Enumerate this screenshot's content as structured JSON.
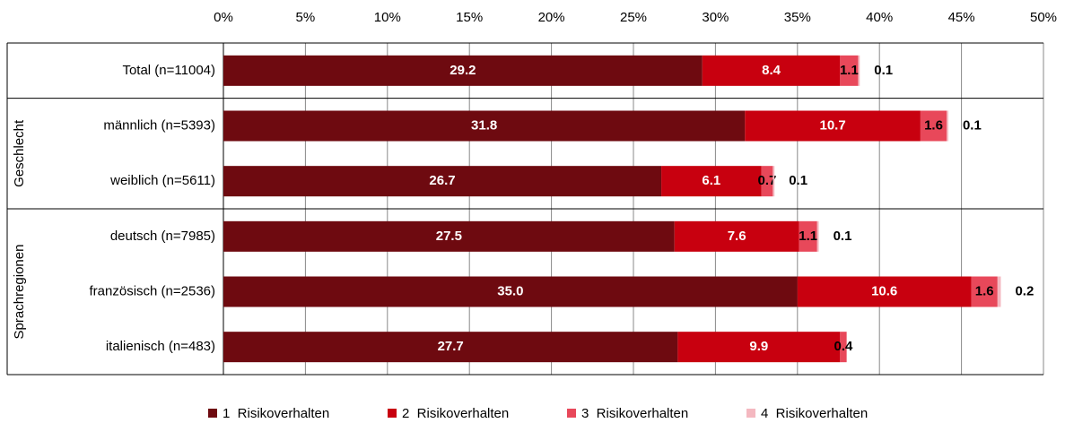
{
  "chart_data": {
    "type": "stacked_barh",
    "categories": [
      "Total (n=11004)",
      "männlich (n=5393)",
      "weiblich (n=5611)",
      "deutsch (n=7985)",
      "französisch (n=2536)",
      "italienisch (n=483)"
    ],
    "group_labels": [
      "Geschlecht",
      "Sprachregionen"
    ],
    "series": [
      {
        "name": "1  Risikoverhalten",
        "color": "#6e0a10",
        "values": [
          29.2,
          31.8,
          26.7,
          27.5,
          35.0,
          27.7
        ],
        "value_labels": [
          "29.2",
          "31.8",
          "26.7",
          "27.5",
          "35.0",
          "27.7"
        ]
      },
      {
        "name": "2  Risikoverhalten",
        "color": "#c8000f",
        "values": [
          8.4,
          10.7,
          6.1,
          7.6,
          10.6,
          9.9
        ],
        "value_labels": [
          "8.4",
          "10.7",
          "6.1",
          "7.6",
          "10.6",
          "9.9"
        ]
      },
      {
        "name": "3  Risikoverhalten",
        "color": "#e8485a",
        "values": [
          1.1,
          1.6,
          0.7,
          1.1,
          1.6,
          0.4
        ],
        "value_labels": [
          "1.1",
          "1.6",
          "0.7",
          "1.1",
          "1.6",
          "0.4"
        ]
      },
      {
        "name": "4  Risikoverhalten",
        "color": "#f4b8c0",
        "values": [
          0.1,
          0.1,
          0.1,
          0.1,
          0.2,
          null
        ],
        "value_labels": [
          "0.1",
          "0.1",
          "0.1",
          "0.1",
          "0.2",
          null
        ]
      }
    ],
    "xlim": [
      0,
      50
    ],
    "xticks": [
      {
        "value": 0,
        "label": "0%"
      },
      {
        "value": 5,
        "label": "5%"
      },
      {
        "value": 10,
        "label": "10%"
      },
      {
        "value": 15,
        "label": "15%"
      },
      {
        "value": 20,
        "label": "20%"
      },
      {
        "value": 25,
        "label": "25%"
      },
      {
        "value": 30,
        "label": "30%"
      },
      {
        "value": 35,
        "label": "35%"
      },
      {
        "value": 40,
        "label": "40%"
      },
      {
        "value": 45,
        "label": "45%"
      },
      {
        "value": 50,
        "label": "50%"
      }
    ],
    "grid": true,
    "legend": "bottom"
  }
}
